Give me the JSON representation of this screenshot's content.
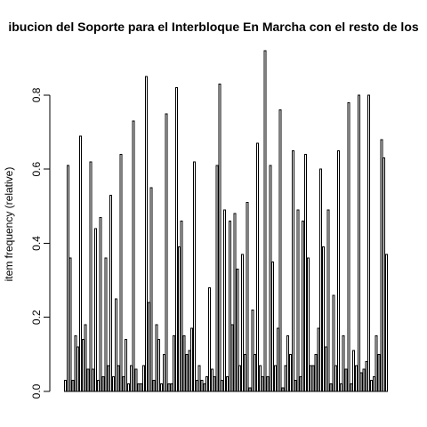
{
  "chart_data": {
    "type": "bar",
    "title": "ibucion del Soporte para el Interbloque En Marcha con el resto de los",
    "xlabel": "",
    "ylabel": "item frequency (relative)",
    "ylim": [
      0,
      0.92
    ],
    "yticks": [
      "0.0",
      "0.2",
      "0.4",
      "0.6",
      "0.8"
    ],
    "ytick_values": [
      0,
      0.2,
      0.4,
      0.6,
      0.8
    ],
    "grid": false,
    "values": [
      0.03,
      0.61,
      0.36,
      0.03,
      0.15,
      0.12,
      0.69,
      0.14,
      0.18,
      0.06,
      0.62,
      0.06,
      0.44,
      0.03,
      0.47,
      0.04,
      0.36,
      0.07,
      0.53,
      0.04,
      0.25,
      0.07,
      0.64,
      0.04,
      0.14,
      0.02,
      0.07,
      0.73,
      0.06,
      0.02,
      0.02,
      0.07,
      0.85,
      0.24,
      0.55,
      0.03,
      0.18,
      0.14,
      0.02,
      0.1,
      0.75,
      0.02,
      0.02,
      0.15,
      0.82,
      0.39,
      0.46,
      0.15,
      0.1,
      0.11,
      0.17,
      0.62,
      0.03,
      0.07,
      0.03,
      0.02,
      0.04,
      0.28,
      0.06,
      0.04,
      0.61,
      0.83,
      0.03,
      0.49,
      0.04,
      0.46,
      0.18,
      0.48,
      0.33,
      0.07,
      0.37,
      0.1,
      0.51,
      0.01,
      0.22,
      0.1,
      0.67,
      0.07,
      0.04,
      0.92,
      0.04,
      0.61,
      0.35,
      0.07,
      0.17,
      0.76,
      0.01,
      0.07,
      0.15,
      0.1,
      0.65,
      0.03,
      0.49,
      0.04,
      0.46,
      0.64,
      0.36,
      0.07,
      0.07,
      0.1,
      0.17,
      0.6,
      0.39,
      0.12,
      0.49,
      0.02,
      0.26,
      0.07,
      0.65,
      0.02,
      0.15,
      0.06,
      0.78,
      0.02,
      0.11,
      0.07,
      0.8,
      0.05,
      0.06,
      0.08,
      0.8,
      0.03,
      0.04,
      0.15,
      0.1,
      0.68,
      0.63,
      0.37
    ]
  }
}
